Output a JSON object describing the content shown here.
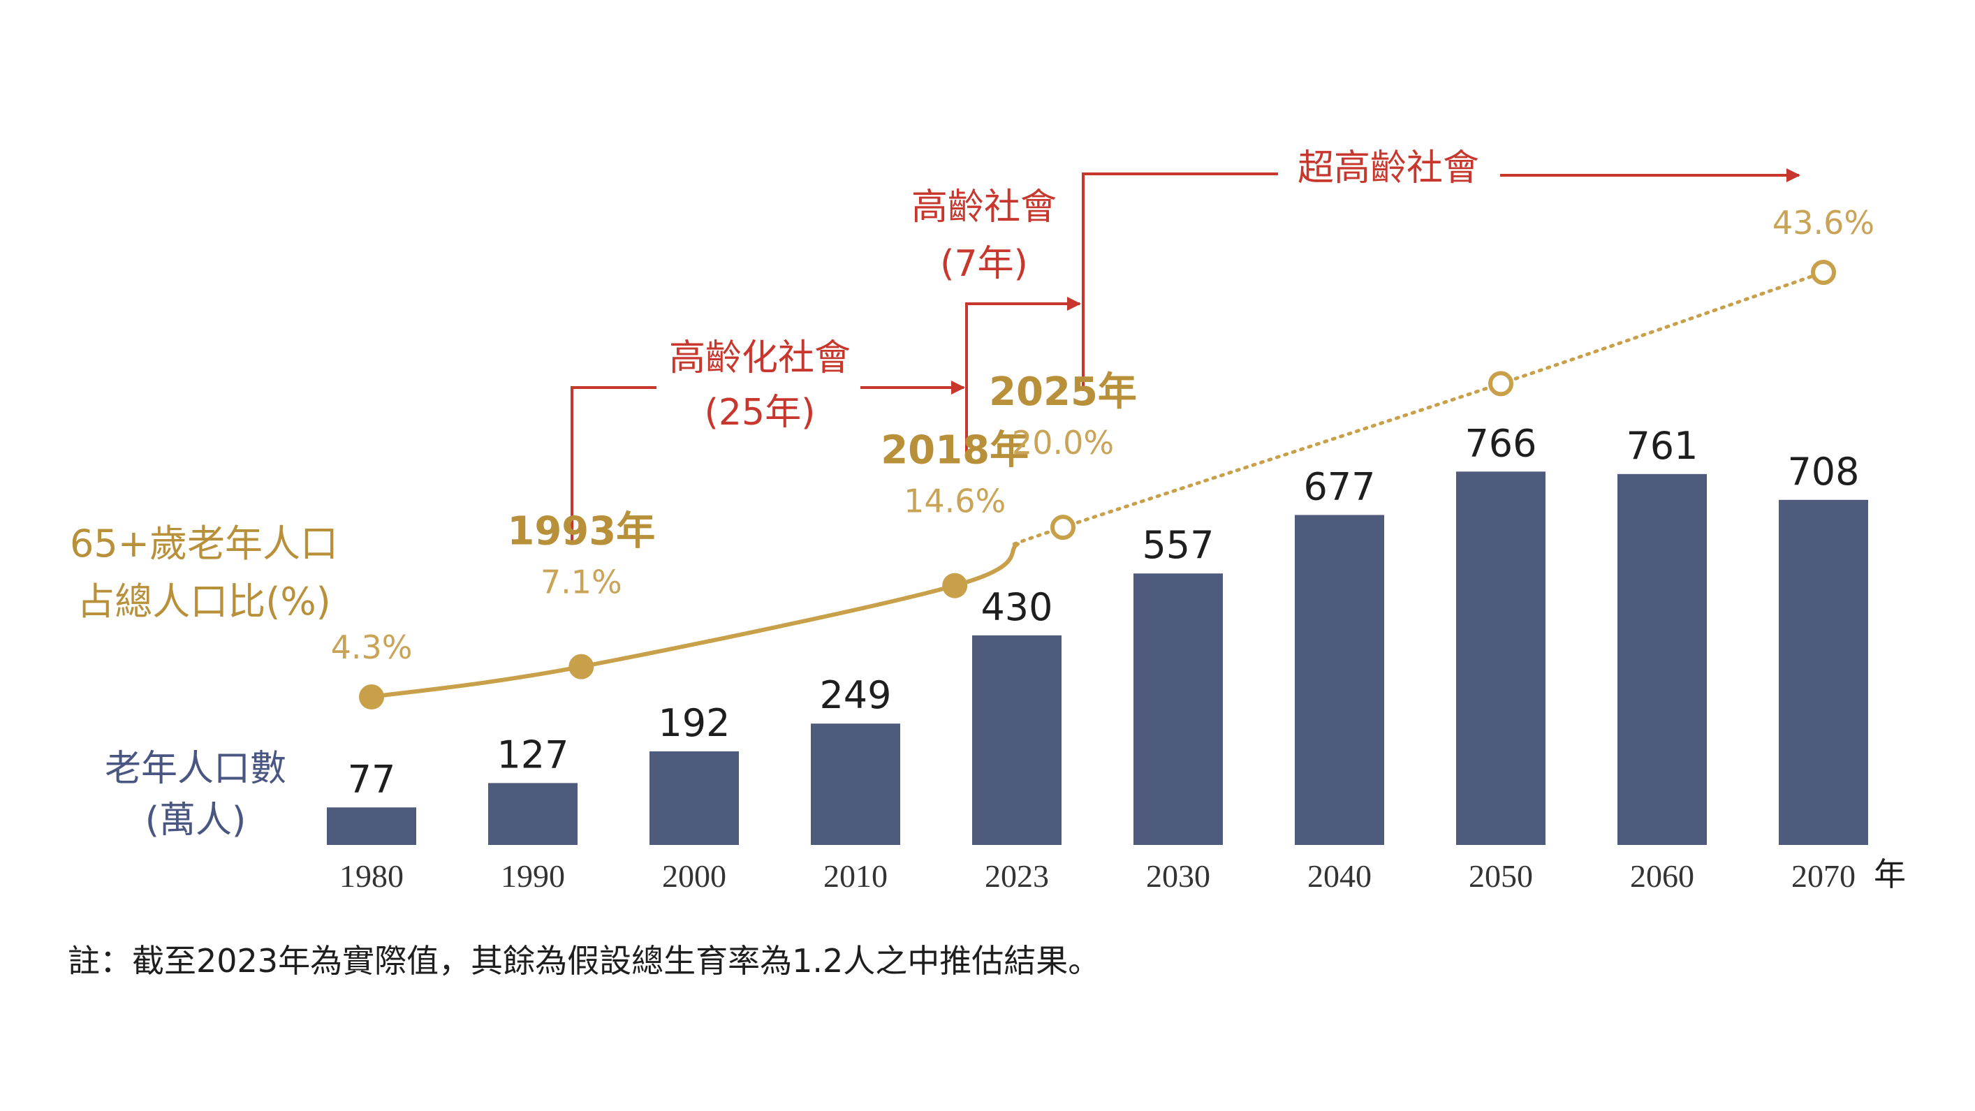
{
  "chart_data": {
    "type": "bar",
    "categories": [
      "1980",
      "1990",
      "2000",
      "2010",
      "2023",
      "2030",
      "2040",
      "2050",
      "2060",
      "2070"
    ],
    "x_unit_label": "年",
    "series": [
      {
        "name": "老年人口數\n(萬人)",
        "type": "bar",
        "values": [
          77,
          127,
          192,
          249,
          430,
          557,
          677,
          766,
          761,
          708
        ],
        "color": "#4f5b7d"
      }
    ],
    "line_series": {
      "name": "65+歲老年人口占總人口比(%)",
      "color": "#c9a04a",
      "points": [
        {
          "year": 1980,
          "value": 4.3,
          "label": "4.3%",
          "marker": "filled"
        },
        {
          "year": 1993,
          "value": 7.1,
          "label": "7.1%",
          "year_label": "1993年",
          "marker": "filled"
        },
        {
          "year": 2018,
          "value": 14.6,
          "label": "14.6%",
          "year_label": "2018年",
          "marker": "filled"
        },
        {
          "year": 2025,
          "value": 20.0,
          "label": "20.0%",
          "year_label": "2025年",
          "marker": "open"
        },
        {
          "year": 2050,
          "value": 33.3,
          "marker": "open"
        },
        {
          "year": 2070,
          "value": 43.6,
          "label": "43.6%",
          "marker": "open"
        }
      ],
      "actual_until": 2023,
      "projected_style": "dotted"
    },
    "left_labels": {
      "line_label_1": "65+歲老年人口",
      "line_label_2": "占總人口比(%)",
      "bar_label_1": "老年人口數",
      "bar_label_2": "(萬人)"
    },
    "annotations": {
      "aging_label": "高齡化社會",
      "aging_years": "(25年)",
      "aged_label": "高齡社會",
      "aged_years": "(7年)",
      "super_aged_label": "超高齡社會",
      "color": "#c8372d"
    },
    "grid": false,
    "legend": "none"
  },
  "footnote": "註：截至2023年為實際值，其餘為假設總生育率為1.2人之中推估結果。"
}
